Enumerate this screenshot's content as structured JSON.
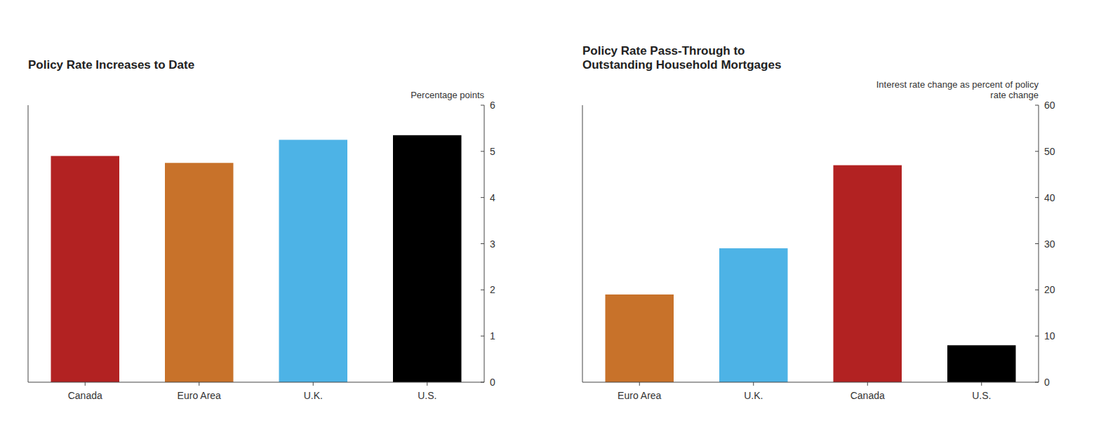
{
  "chart_data": [
    {
      "type": "bar",
      "title": "Policy Rate Increases to Date",
      "ylabel": "Percentage points",
      "categories": [
        "Canada",
        "Euro Area",
        "U.K.",
        "U.S."
      ],
      "values": [
        4.9,
        4.75,
        5.25,
        5.35
      ],
      "colors": [
        "#b22222",
        "#c8722a",
        "#4db3e6",
        "#000000"
      ],
      "ylim": [
        0,
        6
      ],
      "yticks": [
        0,
        1,
        2,
        3,
        4,
        5,
        6
      ]
    },
    {
      "type": "bar",
      "title": "Policy Rate Pass-Through to\nOutstanding Household Mortgages",
      "ylabel": "Interest rate change as percent of policy\nrate change",
      "categories": [
        "Euro Area",
        "U.K.",
        "Canada",
        "U.S."
      ],
      "values": [
        19,
        29,
        47,
        8
      ],
      "colors": [
        "#c8722a",
        "#4db3e6",
        "#b22222",
        "#000000"
      ],
      "ylim": [
        0,
        60
      ],
      "yticks": [
        0,
        10,
        20,
        30,
        40,
        50,
        60
      ]
    }
  ]
}
